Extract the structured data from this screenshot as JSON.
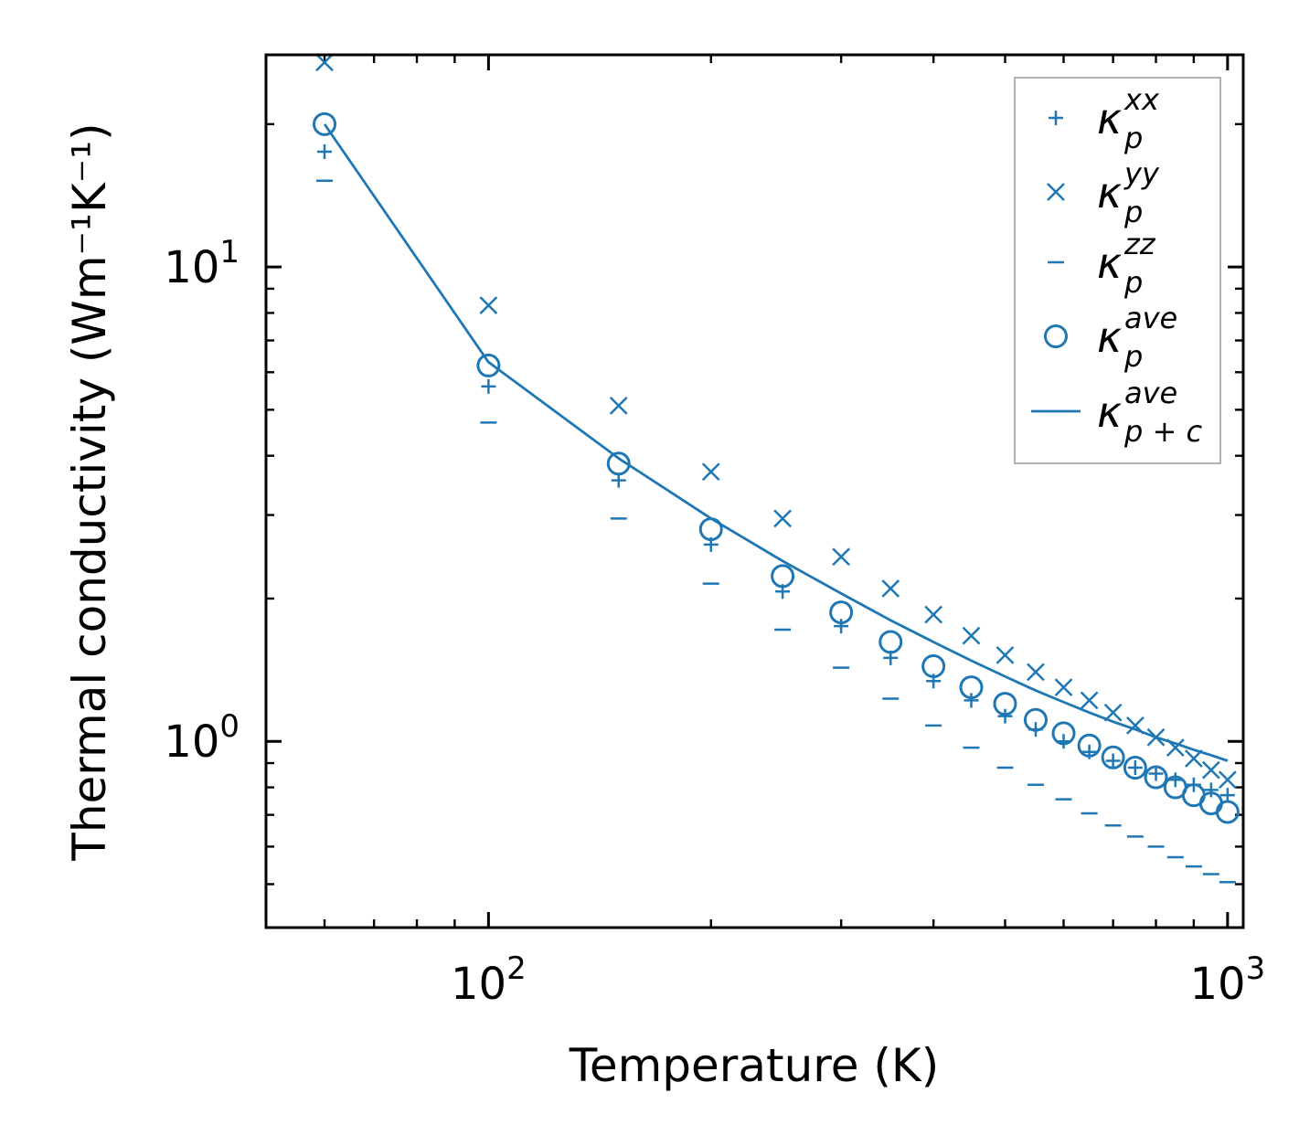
{
  "chart_data": {
    "type": "scatter",
    "xscale": "log",
    "yscale": "log",
    "xlim": [
      50,
      1050
    ],
    "ylim": [
      0.405,
      28
    ],
    "xlabel": "Temperature (K)",
    "ylabel": "Thermal conductivity (Wm⁻¹K⁻¹)",
    "xticks": [
      {
        "value": 100,
        "base": "10",
        "exp": "2"
      },
      {
        "value": 1000,
        "base": "10",
        "exp": "3"
      }
    ],
    "yticks": [
      {
        "value": 1,
        "base": "10",
        "exp": "0"
      },
      {
        "value": 10,
        "base": "10",
        "exp": "1"
      }
    ],
    "color": "#1f77b4",
    "x": [
      60,
      100,
      150,
      200,
      250,
      300,
      350,
      400,
      450,
      500,
      550,
      600,
      650,
      700,
      750,
      800,
      850,
      900,
      950,
      1000
    ],
    "series": [
      {
        "name": "xx",
        "marker": "plus",
        "label": {
          "base": "κ",
          "sub": "p",
          "sup": "xx"
        },
        "values": [
          17.5,
          5.6,
          3.55,
          2.6,
          2.07,
          1.75,
          1.5,
          1.34,
          1.22,
          1.13,
          1.06,
          1.0,
          0.95,
          0.91,
          0.88,
          0.855,
          0.83,
          0.81,
          0.79,
          0.77
        ]
      },
      {
        "name": "yy",
        "marker": "x",
        "label": {
          "base": "κ",
          "sub": "p",
          "sup": "yy"
        },
        "values": [
          27.0,
          8.3,
          5.1,
          3.7,
          2.95,
          2.45,
          2.1,
          1.85,
          1.67,
          1.52,
          1.4,
          1.3,
          1.22,
          1.15,
          1.08,
          1.02,
          0.97,
          0.92,
          0.87,
          0.83
        ]
      },
      {
        "name": "zz",
        "marker": "dash",
        "label": {
          "base": "κ",
          "sub": "p",
          "sup": "zz"
        },
        "values": [
          15.2,
          4.7,
          2.95,
          2.15,
          1.72,
          1.43,
          1.23,
          1.08,
          0.97,
          0.88,
          0.81,
          0.755,
          0.705,
          0.665,
          0.63,
          0.6,
          0.57,
          0.545,
          0.525,
          0.505
        ]
      },
      {
        "name": "ave",
        "marker": "circle",
        "label": {
          "base": "κ",
          "sub": "p",
          "sup": "ave"
        },
        "values": [
          20.0,
          6.2,
          3.85,
          2.8,
          2.23,
          1.87,
          1.62,
          1.44,
          1.3,
          1.2,
          1.11,
          1.04,
          0.98,
          0.925,
          0.88,
          0.84,
          0.8,
          0.77,
          0.74,
          0.71
        ]
      },
      {
        "name": "ave_pc",
        "marker": "line",
        "label": {
          "base": "κ",
          "sub": "p + c",
          "sup": "ave"
        },
        "x": [
          60,
          100,
          150,
          200,
          250,
          300,
          350,
          400,
          450,
          500,
          550,
          600,
          650,
          700,
          750,
          800,
          850,
          900,
          950,
          1000
        ],
        "values": [
          20.0,
          6.3,
          3.95,
          2.95,
          2.4,
          2.05,
          1.8,
          1.62,
          1.48,
          1.37,
          1.28,
          1.21,
          1.15,
          1.1,
          1.06,
          1.02,
          0.99,
          0.96,
          0.935,
          0.91
        ]
      }
    ],
    "legend": "top-right"
  }
}
